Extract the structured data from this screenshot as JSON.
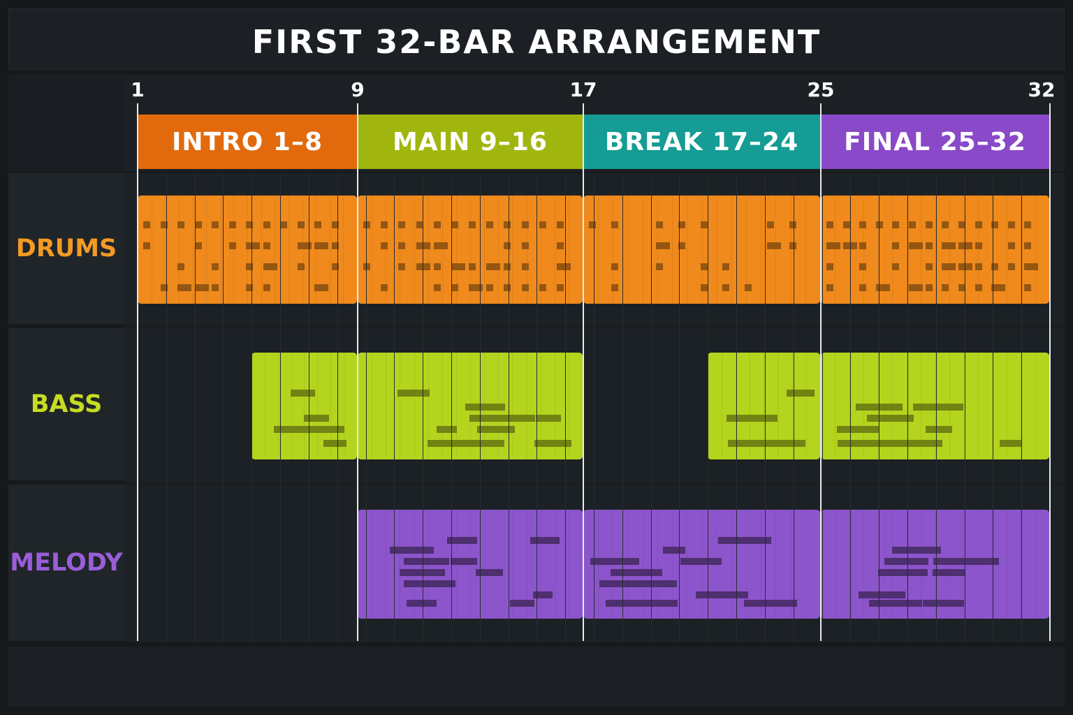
{
  "title": "FIRST 32-BAR ARRANGEMENT",
  "bar_markers": [
    "1",
    "9",
    "17",
    "25",
    "32"
  ],
  "sections": [
    {
      "label": "INTRO 1–8",
      "start_bar": 1,
      "end_bar": 8,
      "color": "#e26a0c"
    },
    {
      "label": "MAIN 9–16",
      "start_bar": 9,
      "end_bar": 16,
      "color": "#a0b60e"
    },
    {
      "label": "BREAK 17–24",
      "start_bar": 17,
      "end_bar": 24,
      "color": "#159c94"
    },
    {
      "label": "FINAL 25–32",
      "start_bar": 25,
      "end_bar": 32,
      "color": "#8a49c8"
    }
  ],
  "tracks": [
    {
      "name": "DRUMS",
      "color": "#f08a1c",
      "label_color": "#f39a24",
      "clips": [
        {
          "start_bar": 1,
          "end_bar": 8,
          "pattern": "full"
        },
        {
          "start_bar": 9,
          "end_bar": 16,
          "pattern": "full"
        },
        {
          "start_bar": 17,
          "end_bar": 24,
          "pattern": "sparse"
        },
        {
          "start_bar": 25,
          "end_bar": 32,
          "pattern": "full"
        }
      ]
    },
    {
      "name": "BASS",
      "color": "#b4d41e",
      "label_color": "#c6dc22",
      "clips": [
        {
          "start_bar": 5,
          "end_bar": 8,
          "pattern": "short"
        },
        {
          "start_bar": 9,
          "end_bar": 16,
          "pattern": "full"
        },
        {
          "start_bar": 21,
          "end_bar": 24,
          "pattern": "short"
        },
        {
          "start_bar": 25,
          "end_bar": 32,
          "pattern": "full"
        }
      ]
    },
    {
      "name": "MELODY",
      "color": "#8d55cc",
      "label_color": "#9a5ed8",
      "clips": [
        {
          "start_bar": 9,
          "end_bar": 16,
          "pattern": "full"
        },
        {
          "start_bar": 17,
          "end_bar": 24,
          "pattern": "sparse"
        },
        {
          "start_bar": 25,
          "end_bar": 32,
          "pattern": "full"
        }
      ]
    }
  ]
}
